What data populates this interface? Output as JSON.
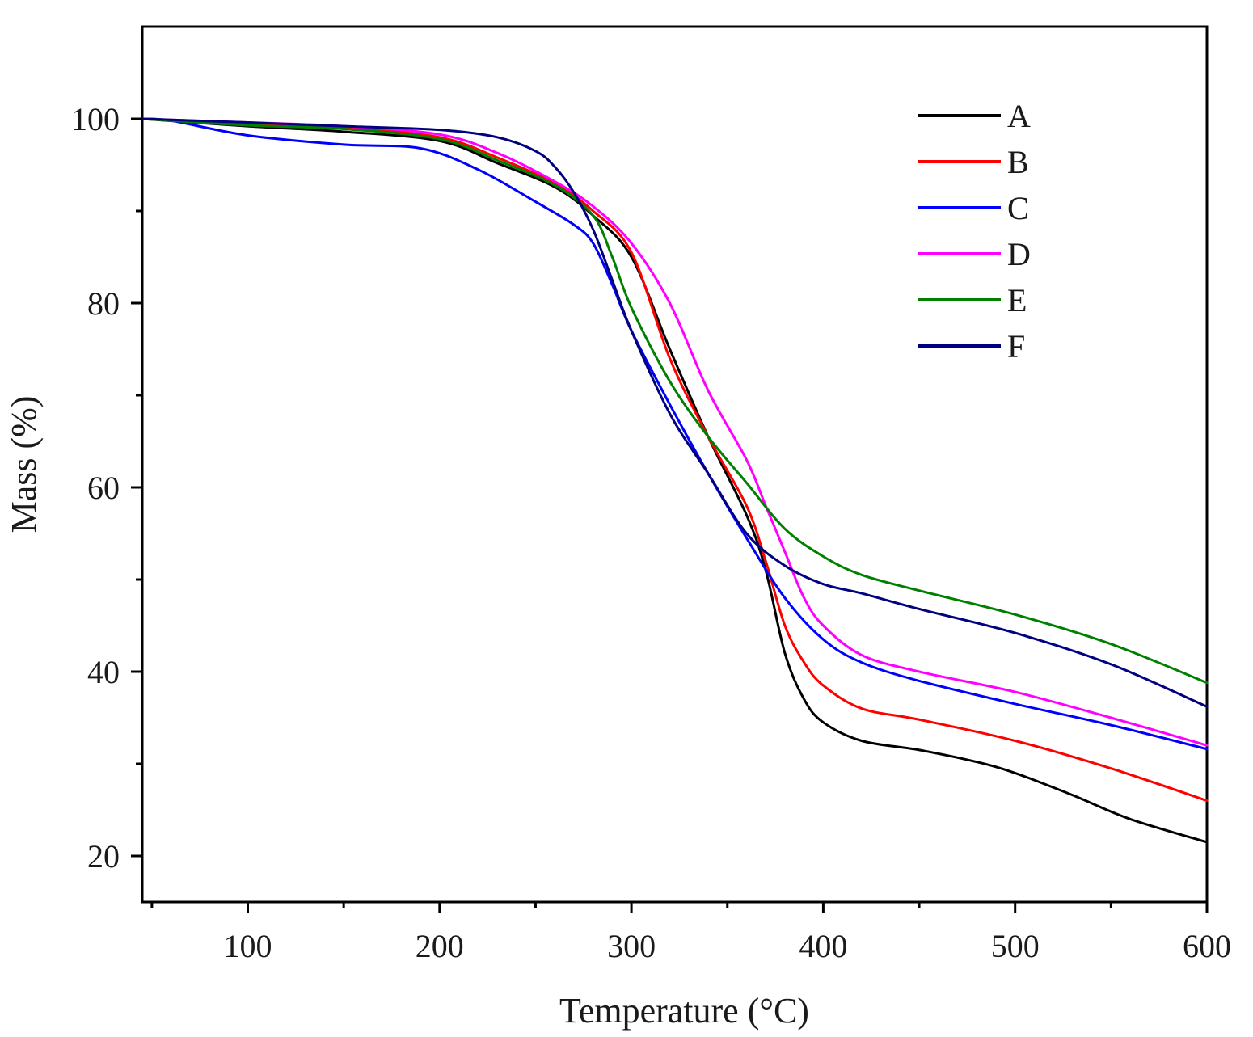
{
  "chart_data": {
    "type": "line",
    "xlabel": "Temperature (°C)",
    "ylabel": "Mass (%)",
    "xlim": [
      45,
      600
    ],
    "ylim": [
      15,
      110
    ],
    "x_ticks": [
      100,
      200,
      300,
      400,
      500,
      600
    ],
    "y_ticks": [
      20,
      40,
      60,
      80,
      100
    ],
    "grid": false,
    "legend_position": "top-right",
    "series": [
      {
        "name": "A",
        "color": "#000000",
        "x": [
          45,
          100,
          150,
          200,
          230,
          260,
          280,
          300,
          320,
          340,
          360,
          370,
          380,
          390,
          400,
          420,
          450,
          480,
          500,
          530,
          560,
          600
        ],
        "y": [
          100,
          99.2,
          98.6,
          97.6,
          95.2,
          92.6,
          89.5,
          85.0,
          75.0,
          65.5,
          57.0,
          51.0,
          42.0,
          37.0,
          34.5,
          32.5,
          31.5,
          30.2,
          29.0,
          26.6,
          24.0,
          21.5
        ]
      },
      {
        "name": "B",
        "color": "#ff0000",
        "x": [
          45,
          100,
          150,
          200,
          230,
          260,
          280,
          300,
          320,
          340,
          360,
          370,
          380,
          390,
          400,
          420,
          450,
          500,
          550,
          600
        ],
        "y": [
          100,
          99.4,
          99.0,
          98.0,
          95.8,
          93.0,
          90.0,
          85.5,
          74.0,
          65.5,
          58.0,
          52.0,
          45.0,
          41.0,
          38.5,
          36.0,
          34.8,
          32.5,
          29.5,
          26.0
        ]
      },
      {
        "name": "C",
        "color": "#0000ff",
        "x": [
          45,
          60,
          100,
          150,
          190,
          220,
          250,
          270,
          280,
          290,
          300,
          320,
          340,
          360,
          380,
          400,
          420,
          450,
          500,
          550,
          600
        ],
        "y": [
          100,
          99.8,
          98.2,
          97.2,
          96.8,
          94.5,
          91.0,
          88.5,
          86.5,
          82.0,
          77.0,
          69.0,
          61.5,
          54.5,
          48.0,
          43.5,
          41.0,
          39.0,
          36.5,
          34.2,
          31.6
        ]
      },
      {
        "name": "D",
        "color": "#ff00ff",
        "x": [
          45,
          100,
          150,
          200,
          230,
          260,
          280,
          300,
          320,
          340,
          360,
          370,
          380,
          390,
          400,
          420,
          450,
          500,
          550,
          600
        ],
        "y": [
          100,
          99.6,
          99.2,
          98.3,
          96.3,
          93.2,
          90.5,
          86.5,
          80.0,
          70.5,
          63.0,
          58.0,
          53.0,
          48.0,
          45.0,
          41.8,
          40.0,
          37.8,
          35.0,
          32.0
        ]
      },
      {
        "name": "E",
        "color": "#008000",
        "x": [
          45,
          100,
          150,
          200,
          230,
          260,
          280,
          290,
          300,
          320,
          340,
          360,
          380,
          400,
          420,
          450,
          500,
          550,
          600
        ],
        "y": [
          100,
          99.3,
          98.9,
          97.8,
          95.5,
          92.8,
          89.5,
          85.0,
          79.5,
          71.5,
          65.5,
          60.5,
          55.5,
          52.5,
          50.5,
          48.8,
          46.2,
          43.0,
          38.8
        ]
      },
      {
        "name": "F",
        "color": "#000080",
        "x": [
          45,
          100,
          150,
          200,
          230,
          250,
          260,
          270,
          280,
          290,
          300,
          320,
          340,
          360,
          380,
          400,
          420,
          450,
          500,
          550,
          600
        ],
        "y": [
          100,
          99.6,
          99.2,
          98.8,
          98.0,
          96.5,
          94.8,
          92.0,
          88.0,
          82.5,
          77.0,
          68.0,
          61.5,
          55.0,
          51.5,
          49.5,
          48.5,
          46.8,
          44.2,
          40.8,
          36.2
        ]
      }
    ]
  }
}
